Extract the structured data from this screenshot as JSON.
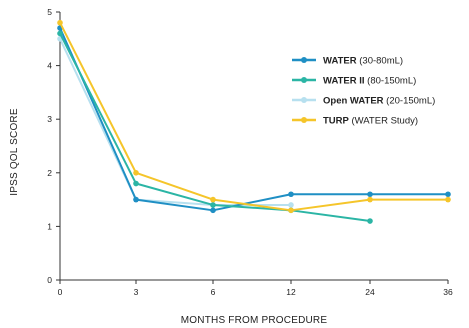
{
  "chart_data": {
    "type": "line",
    "title": "",
    "xlabel": "MONTHS FROM PROCEDURE",
    "ylabel": "IPSS QOL SCORE",
    "x_ticks": [
      0,
      3,
      6,
      12,
      24,
      36
    ],
    "x_tick_labels": [
      "0",
      "3",
      "6",
      "12",
      "24",
      "36"
    ],
    "y_ticks": [
      0,
      1,
      2,
      3,
      4,
      5
    ],
    "y_tick_labels": [
      "0",
      "1",
      "2",
      "3",
      "4",
      "5"
    ],
    "ylim": [
      0,
      5
    ],
    "grid": false,
    "legend_position": "top-right",
    "series": [
      {
        "name": "WATER",
        "name_suffix": " (30-80mL)",
        "color": "#1f8fc4",
        "x": [
          0,
          3,
          6,
          12,
          24,
          36
        ],
        "values": [
          4.7,
          1.5,
          1.3,
          1.6,
          1.6,
          1.6
        ]
      },
      {
        "name": "WATER II",
        "name_suffix": " (80-150mL)",
        "color": "#2bb5a5",
        "x": [
          0,
          3,
          6,
          12,
          24
        ],
        "values": [
          4.6,
          1.8,
          1.4,
          1.3,
          1.1
        ]
      },
      {
        "name": "Open WATER",
        "name_suffix": " (20-150mL)",
        "color": "#b7e0ef",
        "x": [
          0,
          3,
          6,
          12
        ],
        "values": [
          4.5,
          1.5,
          1.4,
          1.4
        ]
      },
      {
        "name": "TURP",
        "name_suffix": " (WATER Study)",
        "color": "#f5c52a",
        "x": [
          0,
          3,
          6,
          12,
          24,
          36
        ],
        "values": [
          4.8,
          2.0,
          1.5,
          1.3,
          1.5,
          1.5
        ]
      }
    ]
  }
}
